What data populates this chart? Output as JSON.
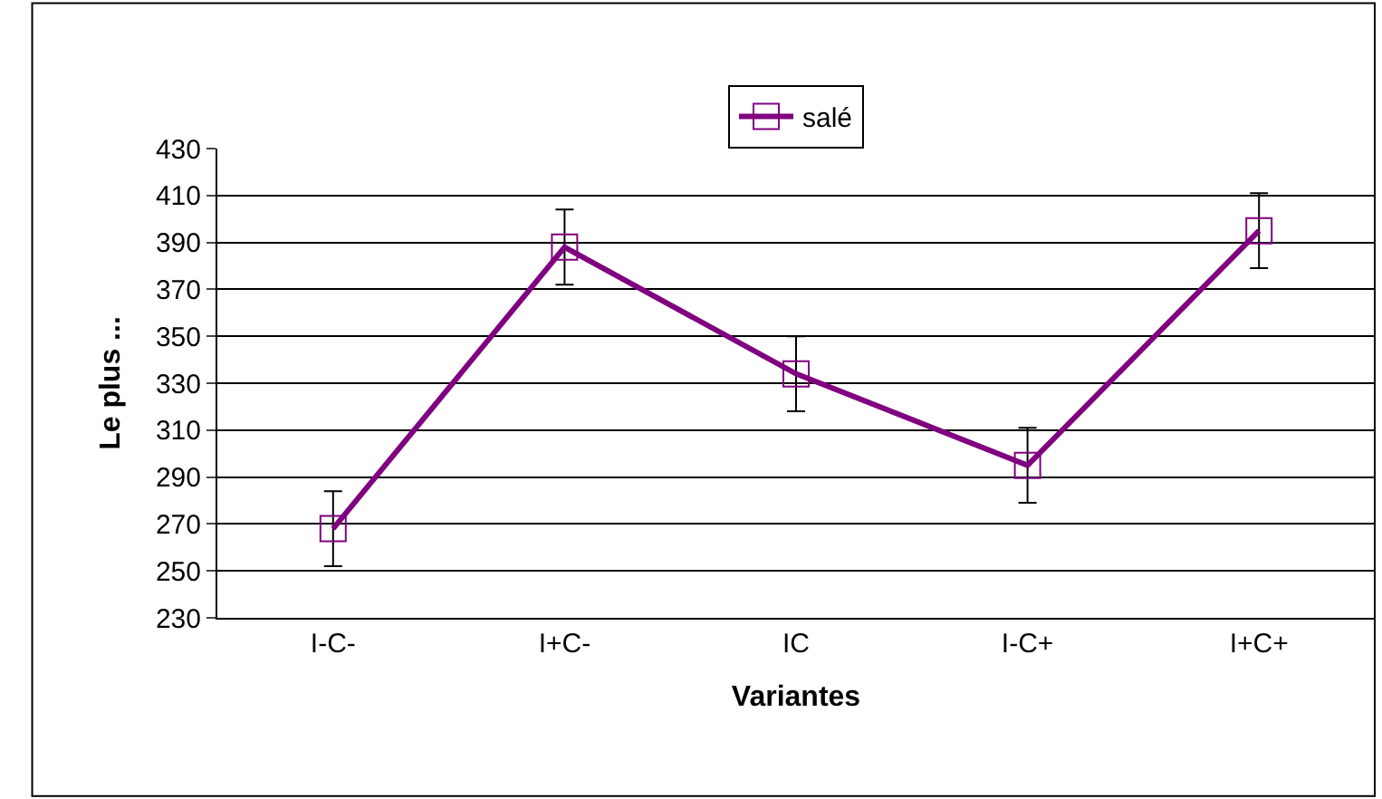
{
  "chart_data": {
    "type": "line",
    "xlabel": "Variantes",
    "ylabel": "Le plus ...",
    "categories": [
      "I-C-",
      "I+C-",
      "IC",
      "I-C+",
      "I+C+"
    ],
    "series": [
      {
        "name": "salé",
        "color": "#800080",
        "values": [
          268,
          388,
          334,
          295,
          395
        ],
        "errors": [
          16,
          16,
          16,
          16,
          16
        ]
      }
    ],
    "ylim": [
      230,
      430
    ],
    "yticks": [
      230,
      250,
      270,
      290,
      310,
      330,
      350,
      370,
      390,
      410,
      430
    ],
    "grid": "y",
    "legend": "top",
    "marker": "square",
    "line_style": "solid"
  }
}
